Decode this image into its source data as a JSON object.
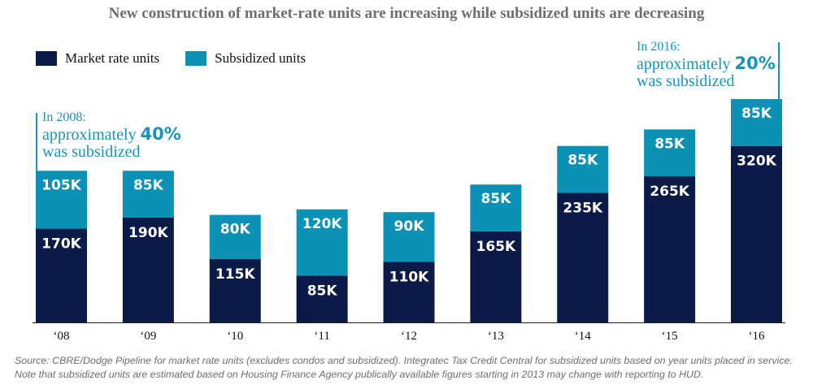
{
  "chart_data": {
    "type": "bar",
    "stacked": true,
    "title": "New construction of market-rate units are increasing while subsidized units are decreasing",
    "categories": [
      "‘08",
      "‘09",
      "‘10",
      "‘11",
      "‘12",
      "‘13",
      "‘14",
      "‘15",
      "‘16"
    ],
    "series": [
      {
        "name": "Market rate units",
        "color": "#0b1a47",
        "values": [
          170,
          190,
          115,
          85,
          110,
          165,
          235,
          265,
          320
        ],
        "labels": [
          "170K",
          "190K",
          "115K",
          "85K",
          "110K",
          "165K",
          "235K",
          "265K",
          "320K"
        ]
      },
      {
        "name": "Subsidized units",
        "color": "#0b91b5",
        "values": [
          105,
          85,
          80,
          120,
          90,
          85,
          85,
          85,
          85
        ],
        "labels": [
          "105K",
          "85K",
          "80K",
          "120K",
          "90K",
          "85K",
          "85K",
          "85K",
          "85K"
        ]
      }
    ],
    "xlabel": "",
    "ylabel": "",
    "ylim": [
      0,
      405
    ],
    "legend_position": "top-left",
    "grid": false
  },
  "annotations": {
    "left": {
      "header": "In 2008:",
      "line1": "approximately ",
      "pct": "40%",
      "line2": "was subsidized"
    },
    "right": {
      "header": "In 2016:",
      "line1": "approximately ",
      "pct": "20%",
      "line2": "was subsidized"
    }
  },
  "source_text": "Source:  CBRE/Dodge Pipeline for market rate units (excludes condos and subsidized). Integratec Tax Credit Central for subsidized units based on year units placed in service. Note that subsidized units are estimated based on Housing Finance Agency publically available figures starting in 2013 may change with reporting to HUD."
}
